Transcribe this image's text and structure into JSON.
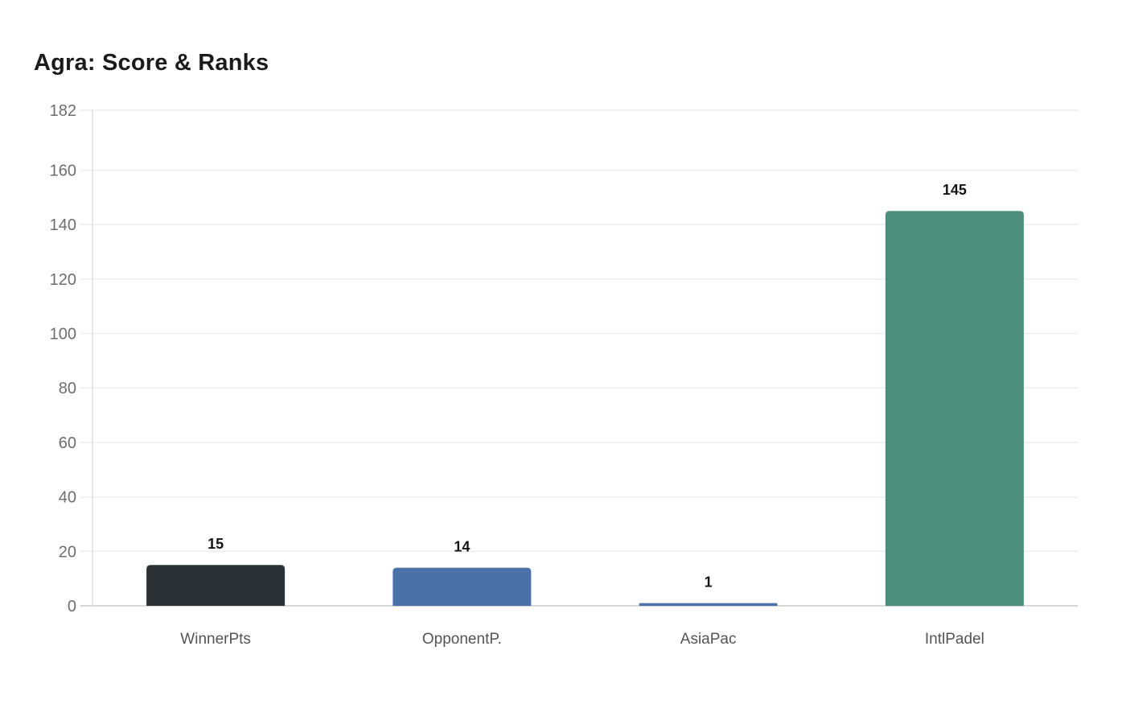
{
  "title": "Agra: Score & Ranks",
  "chart_data": {
    "type": "bar",
    "title": "Agra: Score & Ranks",
    "categories": [
      "WinnerPts",
      "OpponentP.",
      "AsiaPac",
      "IntlPadel"
    ],
    "values": [
      15,
      14,
      1,
      145
    ],
    "value_labels": [
      "15",
      "14",
      "1",
      "145"
    ],
    "bar_colors": [
      "#2b3134",
      "#4a72a9",
      "#4a72a9",
      "#4e8e7c"
    ],
    "xlabel": "",
    "ylabel": "",
    "ylim": [
      0,
      182
    ],
    "yticks": [
      0,
      20,
      40,
      60,
      80,
      100,
      120,
      140,
      160,
      182
    ],
    "grid": true,
    "legend": "none"
  },
  "style": {
    "background": "#ffffff",
    "title_color": "#1b1b1b",
    "grid_color": "#ededed",
    "baseline_color": "#d7d7d7",
    "axis_line_color": "#dedede",
    "ytick_color": "#6e6e6e",
    "xtick_color": "#545454",
    "value_label_color": "#141414"
  }
}
